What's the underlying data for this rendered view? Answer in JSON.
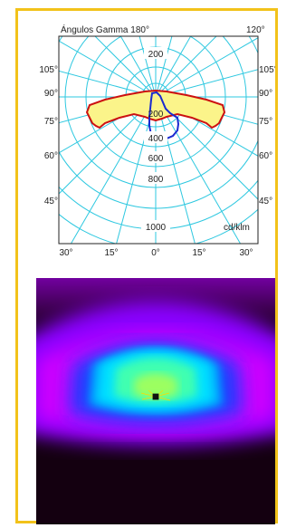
{
  "polar": {
    "title": "Ángulos Gamma  180°",
    "top_right_label": "120°",
    "unit_label": "cd/klm",
    "left_angles": [
      "105°",
      "90°",
      "75°",
      "60°",
      "45°"
    ],
    "right_angles": [
      "105°",
      "90°",
      "75°",
      "60°",
      "45°"
    ],
    "radial_ticks": [
      "200",
      "200",
      "400",
      "600",
      "800",
      "1000"
    ],
    "bottom_angles": [
      "30°",
      "15°",
      "0°",
      "15°",
      "30°"
    ]
  },
  "colors": {
    "frame": "#f2c21a",
    "grid": "#2ec8e0",
    "curve_c0_180": "#cc1111",
    "curve_fill": "#fbf48a",
    "curve_c90_270": "#1a2ad0"
  },
  "isolux": {
    "background": "#140010",
    "colors": [
      "#8a00ff",
      "#cc00ff",
      "#1e3cff",
      "#00a8ff",
      "#00e0ff",
      "#40ffb0",
      "#9cff60"
    ]
  }
}
